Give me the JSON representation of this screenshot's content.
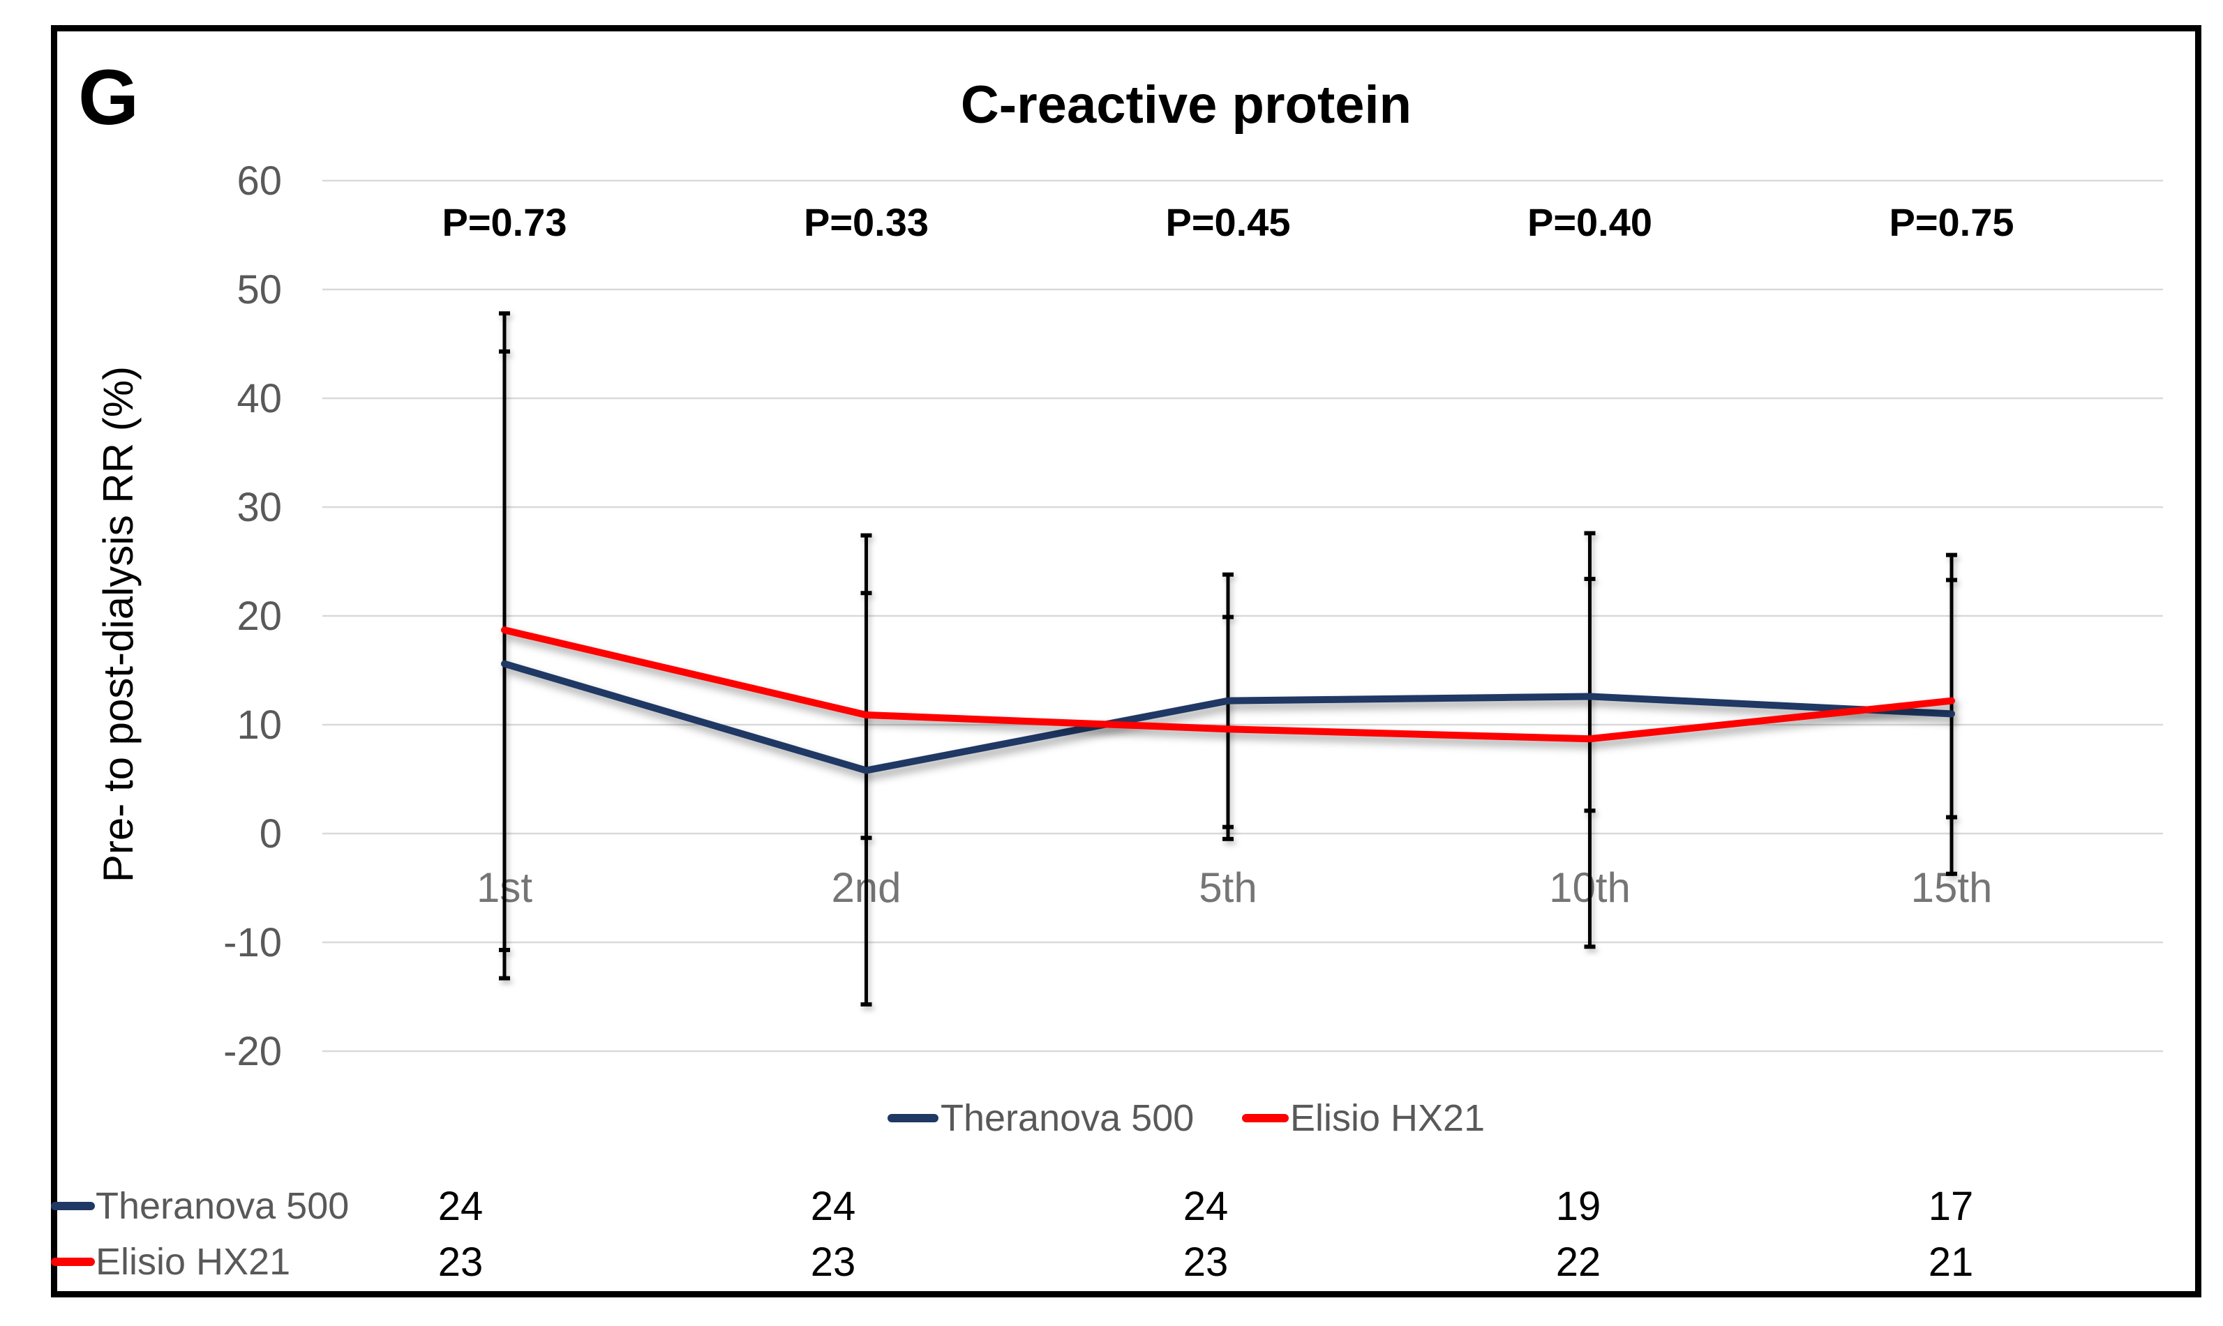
{
  "figure": {
    "panel_label": "G",
    "title": "C-reactive protein"
  },
  "chart_data": {
    "type": "line",
    "title": "C-reactive protein",
    "xlabel": "",
    "ylabel": "Pre- to post-dialysis RR (%)",
    "ylim": [
      -20,
      60
    ],
    "yticks": [
      60,
      50,
      40,
      30,
      20,
      10,
      0,
      -10,
      -20
    ],
    "grid": true,
    "legend_position": "bottom-center",
    "categories": [
      "1st",
      "2nd",
      "5th",
      "10th",
      "15th"
    ],
    "p_values": [
      "P=0.73",
      "P=0.33",
      "P=0.45",
      "P=0.40",
      "P=0.75"
    ],
    "series": [
      {
        "name": "Theranova 500",
        "color": "#1F3864",
        "values": [
          15.6,
          5.8,
          12.2,
          12.6,
          11.0
        ],
        "error_low": [
          -13.3,
          -15.7,
          0.6,
          2.1,
          1.5
        ],
        "error_high": [
          44.3,
          27.4,
          23.8,
          23.4,
          23.3
        ]
      },
      {
        "name": "Elisio HX21",
        "color": "#FF0000",
        "values": [
          18.7,
          10.9,
          9.6,
          8.7,
          12.2
        ],
        "error_low": [
          -10.7,
          -0.4,
          -0.5,
          -10.4,
          -3.7
        ],
        "error_high": [
          47.8,
          22.1,
          19.9,
          27.6,
          25.6
        ]
      }
    ],
    "counts_table": {
      "rows": [
        {
          "label": "Theranova 500",
          "color": "#1F3864",
          "values": [
            "24",
            "24",
            "24",
            "19",
            "17"
          ]
        },
        {
          "label": "Elisio HX21",
          "color": "#FF0000",
          "values": [
            "23",
            "23",
            "23",
            "22",
            "21"
          ]
        }
      ]
    }
  }
}
